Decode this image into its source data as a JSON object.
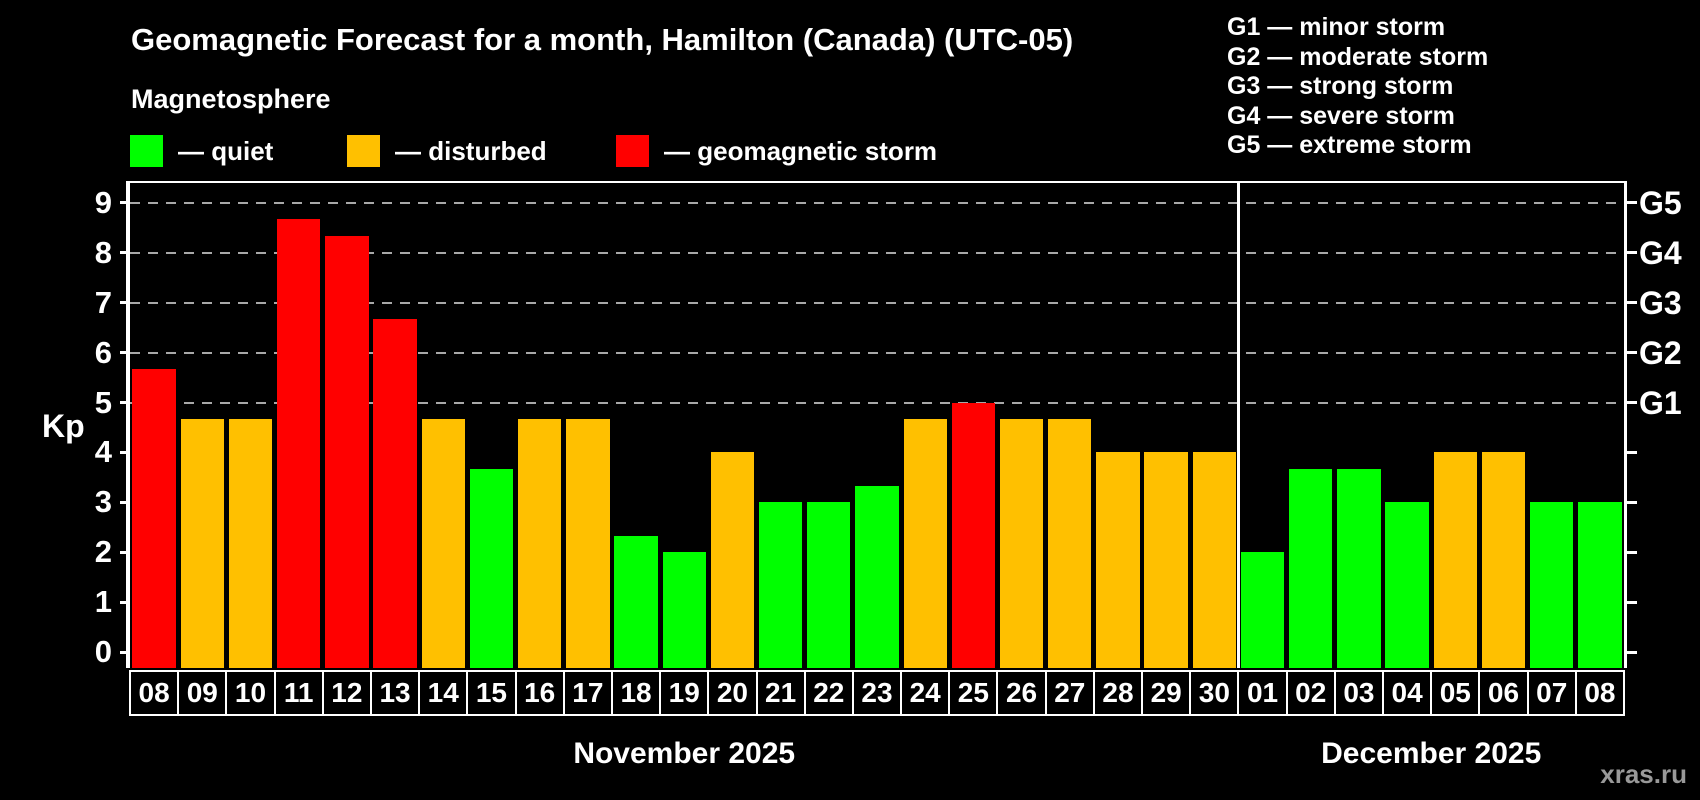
{
  "title": "Geomagnetic Forecast for a month, Hamilton (Canada) (UTC-05)",
  "subtitle": "Magnetosphere",
  "bar_legend": [
    {
      "key": "quiet",
      "label": "— quiet"
    },
    {
      "key": "disturbed",
      "label": "— disturbed"
    },
    {
      "key": "storm",
      "label": "— geomagnetic storm"
    }
  ],
  "g_scale_legend": [
    "G1 — minor storm",
    "G2 — moderate storm",
    "G3 — strong storm",
    "G4 — severe storm",
    "G5 — extreme storm"
  ],
  "watermark": "xras.ru",
  "colors": {
    "quiet": "#00ff00",
    "disturbed": "#ffc000",
    "storm": "#ff0000",
    "background": "#000000",
    "axis": "#ffffff",
    "grid": "#a8a8a8",
    "text": "#ffffff",
    "watermark": "#999999"
  },
  "chart_data": {
    "type": "bar",
    "ylabel": "Kp",
    "ylim": [
      0,
      9.4
    ],
    "yticks": [
      0,
      1,
      2,
      3,
      4,
      5,
      6,
      7,
      8,
      9
    ],
    "gridline_values": [
      5,
      6,
      7,
      8,
      9
    ],
    "grid": "dashed horizontal at G-levels only",
    "legend_position": "top",
    "right_axis": [
      {
        "label": "G1",
        "value": 5
      },
      {
        "label": "G2",
        "value": 6
      },
      {
        "label": "G3",
        "value": 7
      },
      {
        "label": "G4",
        "value": 8
      },
      {
        "label": "G5",
        "value": 9
      }
    ],
    "months": [
      {
        "label": "November 2025",
        "days": 23
      },
      {
        "label": "December 2025",
        "days": 8
      }
    ],
    "bars": [
      {
        "day": "08",
        "month": 0,
        "value": 5.67,
        "status": "storm"
      },
      {
        "day": "09",
        "month": 0,
        "value": 4.67,
        "status": "disturbed"
      },
      {
        "day": "10",
        "month": 0,
        "value": 4.67,
        "status": "disturbed"
      },
      {
        "day": "11",
        "month": 0,
        "value": 8.67,
        "status": "storm"
      },
      {
        "day": "12",
        "month": 0,
        "value": 8.33,
        "status": "storm"
      },
      {
        "day": "13",
        "month": 0,
        "value": 6.67,
        "status": "storm"
      },
      {
        "day": "14",
        "month": 0,
        "value": 4.67,
        "status": "disturbed"
      },
      {
        "day": "15",
        "month": 0,
        "value": 3.67,
        "status": "quiet"
      },
      {
        "day": "16",
        "month": 0,
        "value": 4.67,
        "status": "disturbed"
      },
      {
        "day": "17",
        "month": 0,
        "value": 4.67,
        "status": "disturbed"
      },
      {
        "day": "18",
        "month": 0,
        "value": 2.33,
        "status": "quiet"
      },
      {
        "day": "19",
        "month": 0,
        "value": 2.0,
        "status": "quiet"
      },
      {
        "day": "20",
        "month": 0,
        "value": 4.0,
        "status": "disturbed"
      },
      {
        "day": "21",
        "month": 0,
        "value": 3.0,
        "status": "quiet"
      },
      {
        "day": "22",
        "month": 0,
        "value": 3.0,
        "status": "quiet"
      },
      {
        "day": "23",
        "month": 0,
        "value": 3.33,
        "status": "quiet"
      },
      {
        "day": "24",
        "month": 0,
        "value": 4.67,
        "status": "disturbed"
      },
      {
        "day": "25",
        "month": 0,
        "value": 5.0,
        "status": "storm"
      },
      {
        "day": "26",
        "month": 0,
        "value": 4.67,
        "status": "disturbed"
      },
      {
        "day": "27",
        "month": 0,
        "value": 4.67,
        "status": "disturbed"
      },
      {
        "day": "28",
        "month": 0,
        "value": 4.0,
        "status": "disturbed"
      },
      {
        "day": "29",
        "month": 0,
        "value": 4.0,
        "status": "disturbed"
      },
      {
        "day": "30",
        "month": 0,
        "value": 4.0,
        "status": "disturbed"
      },
      {
        "day": "01",
        "month": 1,
        "value": 2.0,
        "status": "quiet"
      },
      {
        "day": "02",
        "month": 1,
        "value": 3.67,
        "status": "quiet"
      },
      {
        "day": "03",
        "month": 1,
        "value": 3.67,
        "status": "quiet"
      },
      {
        "day": "04",
        "month": 1,
        "value": 3.0,
        "status": "quiet"
      },
      {
        "day": "05",
        "month": 1,
        "value": 4.0,
        "status": "disturbed"
      },
      {
        "day": "06",
        "month": 1,
        "value": 4.0,
        "status": "disturbed"
      },
      {
        "day": "07",
        "month": 1,
        "value": 3.0,
        "status": "quiet"
      },
      {
        "day": "08",
        "month": 1,
        "value": 3.0,
        "status": "quiet"
      }
    ]
  }
}
